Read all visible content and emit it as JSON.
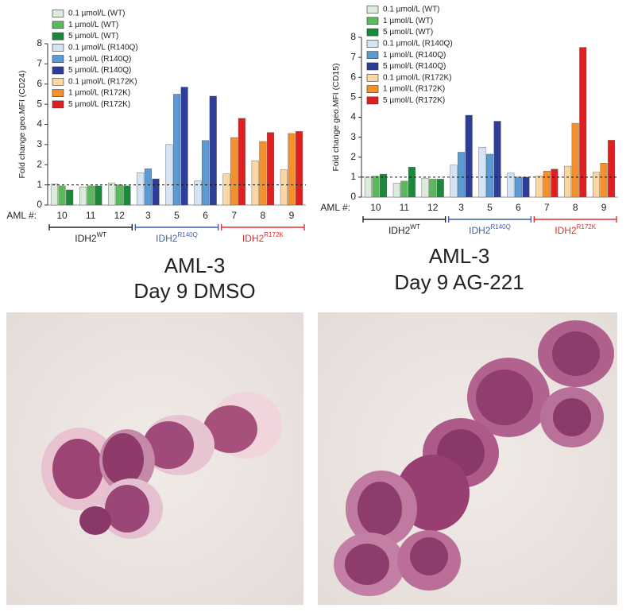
{
  "chart_data": [
    {
      "type": "bar",
      "ylabel": "Fold change geo.MFI (CD24)",
      "xlabel": "AML #:",
      "categories": [
        "10",
        "11",
        "12",
        "3",
        "5",
        "6",
        "7",
        "8",
        "9"
      ],
      "ylim": [
        0,
        8
      ],
      "yticks": [
        0,
        1,
        2,
        3,
        4,
        5,
        6,
        7,
        8
      ],
      "reference_line": 1,
      "groups": [
        {
          "name": "IDH2",
          "sup": "WT",
          "color": "#222222",
          "series": [
            {
              "name": "0.1 µmol/L (WT)",
              "color": "#dcecdc",
              "values": [
                1.05,
                0.9,
                1.1,
                null,
                null,
                null,
                null,
                null,
                null
              ]
            },
            {
              "name": "1 µmol/L (WT)",
              "color": "#5cb85c",
              "values": [
                0.95,
                0.95,
                1.0,
                null,
                null,
                null,
                null,
                null,
                null
              ]
            },
            {
              "name": "5 µmol/L (WT)",
              "color": "#1a8a3a",
              "values": [
                0.75,
                0.95,
                0.95,
                null,
                null,
                null,
                null,
                null,
                null
              ]
            }
          ]
        },
        {
          "name": "IDH2",
          "sup": "R140Q",
          "color": "#3a5fb0",
          "series": [
            {
              "name": "0.1 µmol/L (R140Q)",
              "color": "#d4e4f4",
              "values": [
                null,
                null,
                null,
                1.6,
                3.0,
                1.2,
                null,
                null,
                null
              ]
            },
            {
              "name": "1 µmol/L (R140Q)",
              "color": "#5b9bd5",
              "values": [
                null,
                null,
                null,
                1.8,
                5.5,
                3.2,
                null,
                null,
                null
              ]
            },
            {
              "name": "5 µmol/L (R140Q)",
              "color": "#2c3e9a",
              "values": [
                null,
                null,
                null,
                1.3,
                5.85,
                5.4,
                null,
                null,
                null
              ]
            }
          ]
        },
        {
          "name": "IDH2",
          "sup": "R172K",
          "color": "#e03030",
          "series": [
            {
              "name": "0.1 µmol/L (R172K)",
              "color": "#fbd8a3",
              "values": [
                null,
                null,
                null,
                null,
                null,
                null,
                1.55,
                2.2,
                1.75
              ]
            },
            {
              "name": "1 µmol/L (R172K)",
              "color": "#f5902a",
              "values": [
                null,
                null,
                null,
                null,
                null,
                null,
                3.35,
                3.15,
                3.55
              ]
            },
            {
              "name": "5 µmol/L (R172K)",
              "color": "#e02020",
              "values": [
                null,
                null,
                null,
                null,
                null,
                null,
                4.3,
                3.6,
                3.65
              ]
            }
          ]
        }
      ]
    },
    {
      "type": "bar",
      "ylabel": "Fold change geo.MFI (CD15)",
      "xlabel": "AML #:",
      "categories": [
        "10",
        "11",
        "12",
        "3",
        "5",
        "6",
        "7",
        "8",
        "9"
      ],
      "ylim": [
        0,
        8
      ],
      "yticks": [
        0,
        1,
        2,
        3,
        4,
        5,
        6,
        7,
        8
      ],
      "reference_line": 1,
      "groups": [
        {
          "name": "IDH2",
          "sup": "WT",
          "color": "#222222",
          "series": [
            {
              "name": "0.1 µmol/L (WT)",
              "color": "#dcecdc",
              "values": [
                1.0,
                0.7,
                0.95,
                null,
                null,
                null,
                null,
                null,
                null
              ]
            },
            {
              "name": "1 µmol/L (WT)",
              "color": "#5cb85c",
              "values": [
                1.05,
                0.8,
                0.9,
                null,
                null,
                null,
                null,
                null,
                null
              ]
            },
            {
              "name": "5 µmol/L (WT)",
              "color": "#1a8a3a",
              "values": [
                1.15,
                1.5,
                0.9,
                null,
                null,
                null,
                null,
                null,
                null
              ]
            }
          ]
        },
        {
          "name": "IDH2",
          "sup": "R140Q",
          "color": "#3a5fb0",
          "series": [
            {
              "name": "0.1 µmol/L (R140Q)",
              "color": "#d4e4f4",
              "values": [
                null,
                null,
                null,
                1.6,
                2.5,
                1.2,
                null,
                null,
                null
              ]
            },
            {
              "name": "1 µmol/L (R140Q)",
              "color": "#5b9bd5",
              "values": [
                null,
                null,
                null,
                2.25,
                2.15,
                1.0,
                null,
                null,
                null
              ]
            },
            {
              "name": "5 µmol/L (R140Q)",
              "color": "#2c3e9a",
              "values": [
                null,
                null,
                null,
                4.1,
                3.8,
                1.0,
                null,
                null,
                null
              ]
            }
          ]
        },
        {
          "name": "IDH2",
          "sup": "R172K",
          "color": "#e03030",
          "series": [
            {
              "name": "0.1 µmol/L (R172K)",
              "color": "#fbd8a3",
              "values": [
                null,
                null,
                null,
                null,
                null,
                null,
                1.05,
                1.55,
                1.25
              ]
            },
            {
              "name": "1 µmol/L (R172K)",
              "color": "#f5902a",
              "values": [
                null,
                null,
                null,
                null,
                null,
                null,
                1.3,
                3.7,
                1.7
              ]
            },
            {
              "name": "5 µmol/L (R172K)",
              "color": "#e02020",
              "values": [
                null,
                null,
                null,
                null,
                null,
                null,
                1.4,
                7.5,
                2.85
              ]
            }
          ]
        }
      ]
    }
  ],
  "images": [
    {
      "caption": [
        "AML-3",
        "Day 9 DMSO"
      ]
    },
    {
      "caption": [
        "AML-3",
        "Day 9 AG-221"
      ]
    }
  ]
}
